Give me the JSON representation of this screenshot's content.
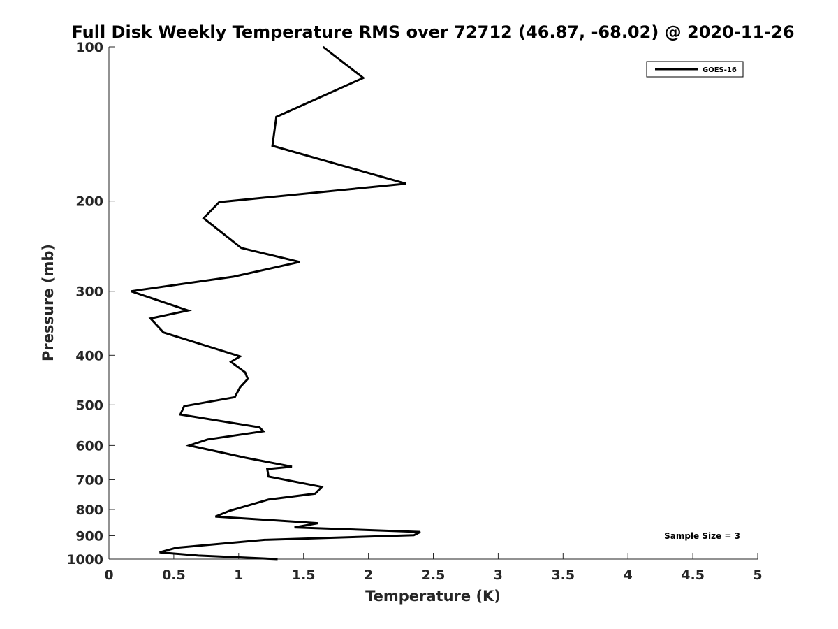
{
  "chart_data": {
    "type": "line",
    "title": "Full Disk Weekly Temperature RMS over 72712 (46.87, -68.02) @ 2020-11-26",
    "xlabel": "Temperature (K)",
    "ylabel": "Pressure (mb)",
    "xlim": [
      0,
      5
    ],
    "ylim": [
      1000,
      100
    ],
    "y_scale": "log",
    "y_reversed": true,
    "x_ticks": [
      "0",
      "0.5",
      "1",
      "1.5",
      "2",
      "2.5",
      "3",
      "3.5",
      "4",
      "4.5",
      "5"
    ],
    "y_ticks": [
      "100",
      "200",
      "300",
      "400",
      "500",
      "600",
      "700",
      "800",
      "900",
      "1000"
    ],
    "grid": false,
    "legend_position": "top-right",
    "color": "#000000",
    "series": [
      {
        "name": "GOES-16",
        "x": [
          1.65,
          1.96,
          1.29,
          1.26,
          2.29,
          0.85,
          0.73,
          1.02,
          1.47,
          0.96,
          0.17,
          0.61,
          0.32,
          0.42,
          1.01,
          0.94,
          1.05,
          1.07,
          1.01,
          0.97,
          0.58,
          0.55,
          1.16,
          1.19,
          0.76,
          0.62,
          1.05,
          1.41,
          1.22,
          1.23,
          1.64,
          1.59,
          1.23,
          0.93,
          0.82,
          1.61,
          1.43,
          2.4,
          2.35,
          1.2,
          0.52,
          0.39,
          0.69,
          1.3
        ],
        "y": [
          100,
          115,
          137,
          156,
          185,
          201,
          216,
          247,
          263,
          281,
          300,
          327,
          339,
          361,
          402,
          412,
          432,
          445,
          462,
          483,
          503,
          522,
          553,
          563,
          584,
          600,
          634,
          660,
          667,
          690,
          723,
          745,
          765,
          805,
          826,
          851,
          867,
          885,
          898,
          917,
          950,
          970,
          984,
          1000
        ]
      }
    ],
    "annotations": [
      "Sample Size = 3"
    ]
  }
}
